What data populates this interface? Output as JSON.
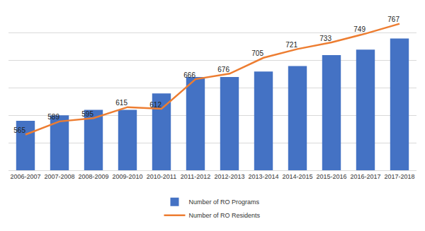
{
  "chart_data": {
    "type": "bar",
    "categories": [
      "2006-2007",
      "2007-2008",
      "2008-2009",
      "2009-2010",
      "2010-2011",
      "2011-2012",
      "2012-2013",
      "2013-2014",
      "2014-2015",
      "2015-2016",
      "2016-2017",
      "2017-2018"
    ],
    "series": [
      {
        "name": "Number of RO Programs",
        "type": "bar",
        "color": "#4472c4",
        "values": [
          79,
          80,
          81,
          81,
          84,
          87,
          87,
          88,
          89,
          91,
          92,
          94
        ]
      },
      {
        "name": "Number of RO Residents",
        "type": "line",
        "color": "#ed7d31",
        "axis": "y2",
        "values": [
          565,
          589,
          595,
          615,
          612,
          666,
          676,
          705,
          721,
          733,
          749,
          767
        ]
      }
    ],
    "ylim": [
      70,
      100
    ],
    "yticks": [
      70,
      75,
      80,
      85,
      90,
      95,
      100
    ],
    "y2lim": [
      500,
      800
    ],
    "y2ticks": [
      500,
      550,
      600,
      650,
      700,
      750,
      800
    ],
    "grid": true,
    "legend": "bottom",
    "data_labels": true,
    "tick_labels": "x"
  }
}
